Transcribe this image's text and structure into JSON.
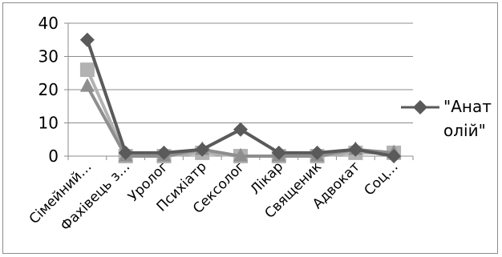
{
  "chart_data": {
    "type": "line",
    "categories": [
      "Сімейний…",
      "Фахівець з…",
      "Уролог",
      "Психіатр",
      "Сексолог",
      "Лікар",
      "Священик",
      "Адвокат",
      "Соц…"
    ],
    "series": [
      {
        "name": "\"Анатолій\"",
        "color": "#5a5a5a",
        "marker": "diamond",
        "values": [
          35,
          1,
          1,
          2,
          8,
          1,
          1,
          2,
          0
        ]
      },
      {
        "color": "#b2b2b2",
        "marker": "square",
        "values": [
          26,
          0,
          0,
          1,
          0,
          0,
          0,
          1,
          1
        ]
      },
      {
        "color": "#8e8e8e",
        "marker": "triangle",
        "values": [
          21,
          0,
          0,
          2,
          0,
          0,
          0,
          2,
          1
        ]
      }
    ],
    "ylim": [
      0,
      40
    ],
    "yticks": [
      0,
      10,
      20,
      30,
      40
    ],
    "grid": true,
    "legend": "right"
  },
  "legend": {
    "line1": "\"Анат",
    "line2": "олій\""
  }
}
